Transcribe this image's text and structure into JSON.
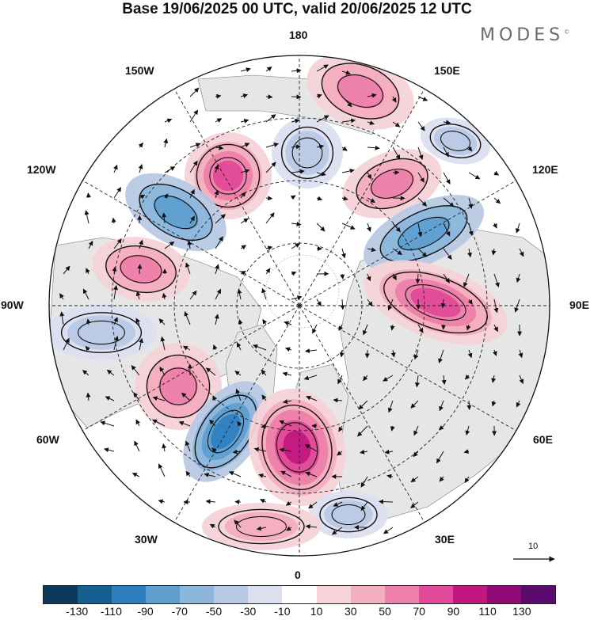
{
  "title": "Base 19/06/2025 00 UTC, valid 20/06/2025 12 UTC",
  "brand": "MODES",
  "brand_mark": "©",
  "map": {
    "projection": "north-polar-stereographic",
    "longitude_labels": {
      "lon_180": "180",
      "lon_150e": "150E",
      "lon_120e": "120E",
      "lon_90e": "90E",
      "lon_60e": "60E",
      "lon_30e": "30E",
      "lon_0": "0",
      "lon_30w": "30W",
      "lon_60w": "60W",
      "lon_90w": "90W",
      "lon_120w": "120W",
      "lon_150w": "150W"
    },
    "reference_vector_label": "10",
    "land_color": "#e6e6e6",
    "contour_color": "#111111",
    "anomaly_centers": [
      {
        "sign": "positive",
        "level": 50,
        "lon": "160E"
      },
      {
        "sign": "negative",
        "level": -30,
        "lon": "140E"
      },
      {
        "sign": "positive",
        "level": 70,
        "lon": "125E"
      },
      {
        "sign": "negative",
        "level": -70,
        "lon": "110E"
      },
      {
        "sign": "positive",
        "level": 90,
        "lon": "85E"
      },
      {
        "sign": "negative",
        "level": -30,
        "lon": "175E"
      },
      {
        "sign": "positive",
        "level": 90,
        "lon": "160W"
      },
      {
        "sign": "negative",
        "level": -90,
        "lon": "130W"
      },
      {
        "sign": "positive",
        "level": 50,
        "lon": "105W"
      },
      {
        "sign": "negative",
        "level": -30,
        "lon": "85W"
      },
      {
        "sign": "positive",
        "level": 70,
        "lon": "60W"
      },
      {
        "sign": "negative",
        "level": -110,
        "lon": "35W"
      },
      {
        "sign": "positive",
        "level": 110,
        "lon": "5W"
      },
      {
        "sign": "negative",
        "level": -30,
        "lon": "20E"
      },
      {
        "sign": "positive",
        "level": 30,
        "lon": "15W"
      }
    ]
  },
  "colorbar": {
    "colors": [
      "#0b3a5c",
      "#165f91",
      "#2f7fbf",
      "#5e9fd0",
      "#8cb6dc",
      "#b8c9e4",
      "#dcdff0",
      "#ffffff",
      "#f6d3d8",
      "#f3aebf",
      "#ec80aa",
      "#e04a98",
      "#c1187f",
      "#8f0a74",
      "#5a0b6d"
    ],
    "ticks": [
      "-130",
      "-110",
      "-90",
      "-70",
      "-50",
      "-30",
      "-10",
      "10",
      "30",
      "50",
      "70",
      "90",
      "110",
      "130"
    ]
  }
}
